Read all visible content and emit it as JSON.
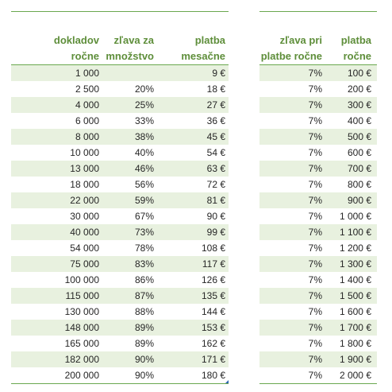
{
  "left_table": {
    "headers": [
      [
        "dokladov",
        "ročne"
      ],
      [
        "zľava za",
        "množstvo"
      ],
      [
        "platba",
        "mesačne"
      ]
    ],
    "rows": [
      [
        "1 000",
        "",
        "9 €"
      ],
      [
        "2 500",
        "20%",
        "18 €"
      ],
      [
        "4 000",
        "25%",
        "27 €"
      ],
      [
        "6 000",
        "33%",
        "36 €"
      ],
      [
        "8 000",
        "38%",
        "45 €"
      ],
      [
        "10 000",
        "40%",
        "54 €"
      ],
      [
        "13 000",
        "46%",
        "63 €"
      ],
      [
        "18 000",
        "56%",
        "72 €"
      ],
      [
        "22 000",
        "59%",
        "81 €"
      ],
      [
        "30 000",
        "67%",
        "90 €"
      ],
      [
        "40 000",
        "73%",
        "99 €"
      ],
      [
        "54 000",
        "78%",
        "108 €"
      ],
      [
        "75 000",
        "83%",
        "117 €"
      ],
      [
        "100 000",
        "86%",
        "126 €"
      ],
      [
        "115 000",
        "87%",
        "135 €"
      ],
      [
        "130 000",
        "88%",
        "144 €"
      ],
      [
        "148 000",
        "89%",
        "153 €"
      ],
      [
        "165 000",
        "89%",
        "162 €"
      ],
      [
        "182 000",
        "90%",
        "171 €"
      ],
      [
        "200 000",
        "90%",
        "180 €"
      ]
    ]
  },
  "right_table": {
    "headers": [
      [
        "zľava pri",
        "platbe ročne"
      ],
      [
        "platba",
        "ročne"
      ]
    ],
    "rows": [
      [
        "7%",
        "100 €"
      ],
      [
        "7%",
        "200 €"
      ],
      [
        "7%",
        "300 €"
      ],
      [
        "7%",
        "400 €"
      ],
      [
        "7%",
        "500 €"
      ],
      [
        "7%",
        "600 €"
      ],
      [
        "7%",
        "700 €"
      ],
      [
        "7%",
        "800 €"
      ],
      [
        "7%",
        "900 €"
      ],
      [
        "7%",
        "1 000 €"
      ],
      [
        "7%",
        "1 100 €"
      ],
      [
        "7%",
        "1 200 €"
      ],
      [
        "7%",
        "1 300 €"
      ],
      [
        "7%",
        "1 400 €"
      ],
      [
        "7%",
        "1 500 €"
      ],
      [
        "7%",
        "1 600 €"
      ],
      [
        "7%",
        "1 700 €"
      ],
      [
        "7%",
        "1 800 €"
      ],
      [
        "7%",
        "1 900 €"
      ],
      [
        "7%",
        "2 000 €"
      ]
    ]
  },
  "colors": {
    "header_text": "#5e8e3a",
    "rule": "#6aa84f",
    "band": "#e8f1df",
    "text": "#262626"
  }
}
